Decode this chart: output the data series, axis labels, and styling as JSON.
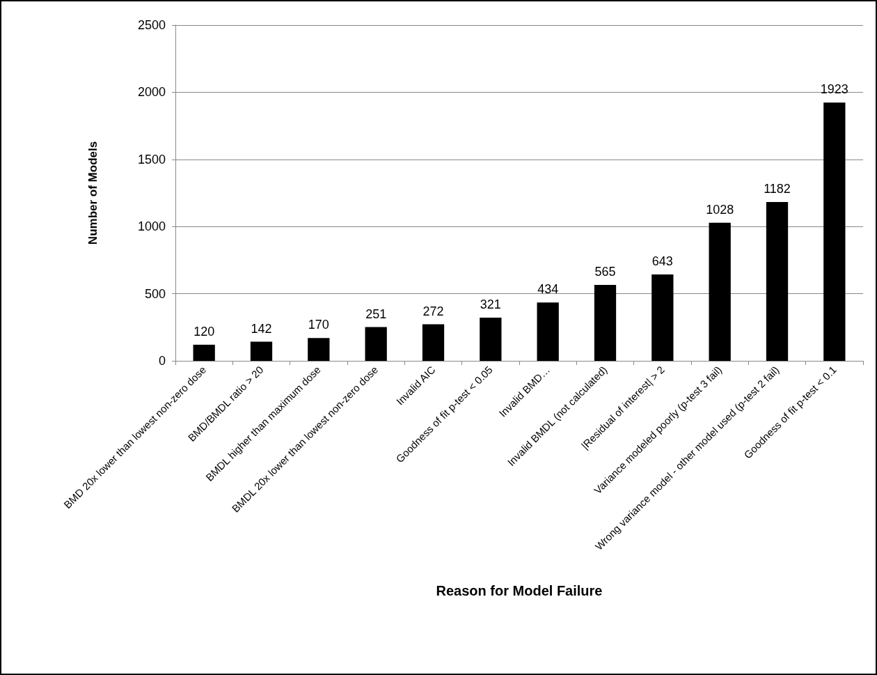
{
  "chart_data": {
    "type": "bar",
    "xlabel": "Reason for Model Failure",
    "ylabel": "Number of Models",
    "categories": [
      "BMD 20x lower than lowest non-zero dose",
      "BMD/BMDL ratio > 20",
      "BMDL higher than maximum dose",
      "BMDL 20x lower than lowest non-zero dose",
      "Invalid AIC",
      "Goodness of fit p-test < 0.05",
      "Invalid BMD…",
      "Invalid BMDL (not calculated)",
      "|Residual of interest| > 2",
      "Variance modeled poorly (p-test 3 fail)",
      "Wrong variance model - other model used (p-test 2 fail)",
      "Goodness of fit p-test < 0.1"
    ],
    "values": [
      120,
      142,
      170,
      251,
      272,
      321,
      434,
      565,
      643,
      1028,
      1182,
      1923
    ],
    "color": "#000000",
    "ylim": [
      0,
      2500
    ],
    "yticks": [
      0,
      500,
      1000,
      1500,
      2000,
      2500
    ],
    "grid": "y",
    "data_labels": true
  }
}
